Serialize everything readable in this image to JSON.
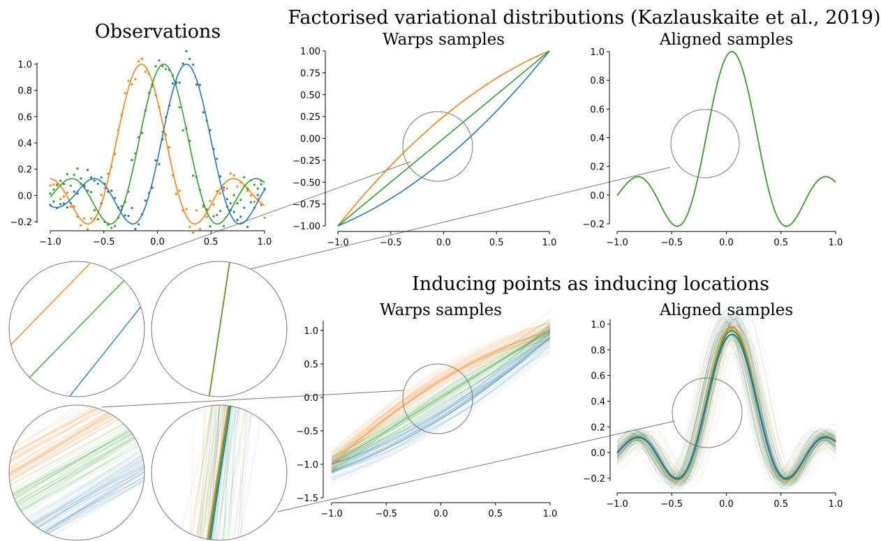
{
  "figure": {
    "observations_title": "Observations",
    "factorised_title": "Factorised variational distributions (Kazlauskaite et al., 2019)",
    "inducing_title": "Inducing points as inducing locations"
  },
  "colors": {
    "blue": "#1f77b4",
    "orange": "#ff7f0e",
    "green": "#2ca02c",
    "zoom": "#777777"
  },
  "chart_data": [
    {
      "id": "observations",
      "type": "line+scatter",
      "title": "Observations",
      "xlim": [
        -1.05,
        1.05
      ],
      "ylim": [
        -0.24,
        1.1
      ],
      "xticks": [
        "−1.0",
        "−0.5",
        "0.0",
        "0.5",
        "1.0"
      ],
      "yticks": [
        "−0.2",
        "0.0",
        "0.2",
        "0.4",
        "0.6",
        "0.8",
        "1.0"
      ],
      "series": [
        {
          "color": "orange",
          "peak_x": -0.15,
          "style": "line+points"
        },
        {
          "color": "green",
          "peak_x": 0.06,
          "style": "line+points"
        },
        {
          "color": "blue",
          "peak_x": 0.27,
          "style": "line+points"
        }
      ]
    },
    {
      "id": "warps_fact",
      "type": "line",
      "title": "Warps samples",
      "xlim": [
        -1.0,
        1.0
      ],
      "ylim": [
        -1.0,
        1.0
      ],
      "xticks": [
        "−1.0",
        "−0.5",
        "0.0",
        "0.5",
        "1.0"
      ],
      "yticks": [
        "−1.00",
        "−0.75",
        "−0.50",
        "−0.25",
        "0.00",
        "0.25",
        "0.50",
        "0.75",
        "1.00"
      ],
      "series": [
        {
          "color": "orange",
          "curvature": 0.25
        },
        {
          "color": "green",
          "curvature": 0.0
        },
        {
          "color": "blue",
          "curvature": -0.25
        }
      ]
    },
    {
      "id": "aligned_fact",
      "type": "line",
      "title": "Aligned samples",
      "xlim": [
        -1.0,
        1.0
      ],
      "ylim": [
        -0.22,
        1.0
      ],
      "xticks": [
        "−1.0",
        "−0.5",
        "0.0",
        "0.5",
        "1.0"
      ],
      "yticks": [
        "−0.2",
        "0.0",
        "0.2",
        "0.4",
        "0.6",
        "0.8",
        "1.0"
      ],
      "series": [
        {
          "color": "blue",
          "peak_x": 0.05
        },
        {
          "color": "orange",
          "peak_x": 0.05
        },
        {
          "color": "green",
          "peak_x": 0.05
        }
      ]
    },
    {
      "id": "warps_ind",
      "type": "line",
      "title": "Warps samples",
      "xlim": [
        -1.0,
        1.0
      ],
      "ylim": [
        -1.5,
        1.1
      ],
      "xticks": [
        "−1.0",
        "−0.5",
        "0.0",
        "0.5",
        "1.0"
      ],
      "yticks": [
        "−1.5",
        "−1.0",
        "−0.5",
        "0.0",
        "0.5",
        "1.0"
      ],
      "series": [
        {
          "color": "orange",
          "offset": 0.0,
          "curvature": 0.25,
          "samples": 40
        },
        {
          "color": "green",
          "offset": 0.0,
          "curvature": 0.0,
          "samples": 40
        },
        {
          "color": "blue",
          "offset": -0.1,
          "curvature": -0.22,
          "samples": 40
        }
      ]
    },
    {
      "id": "aligned_ind",
      "type": "line",
      "title": "Aligned samples",
      "xlim": [
        -1.0,
        1.0
      ],
      "ylim": [
        -0.25,
        1.0
      ],
      "xticks": [
        "−1.0",
        "−0.5",
        "0.0",
        "0.5",
        "1.0"
      ],
      "yticks": [
        "−0.2",
        "0.0",
        "0.2",
        "0.4",
        "0.6",
        "0.8",
        "1.0"
      ],
      "series": [
        {
          "color": "orange",
          "peak_x": 0.05,
          "samples": 40
        },
        {
          "color": "green",
          "peak_x": 0.05,
          "samples": 40
        },
        {
          "color": "blue",
          "peak_x": 0.05,
          "samples": 40
        }
      ]
    }
  ]
}
